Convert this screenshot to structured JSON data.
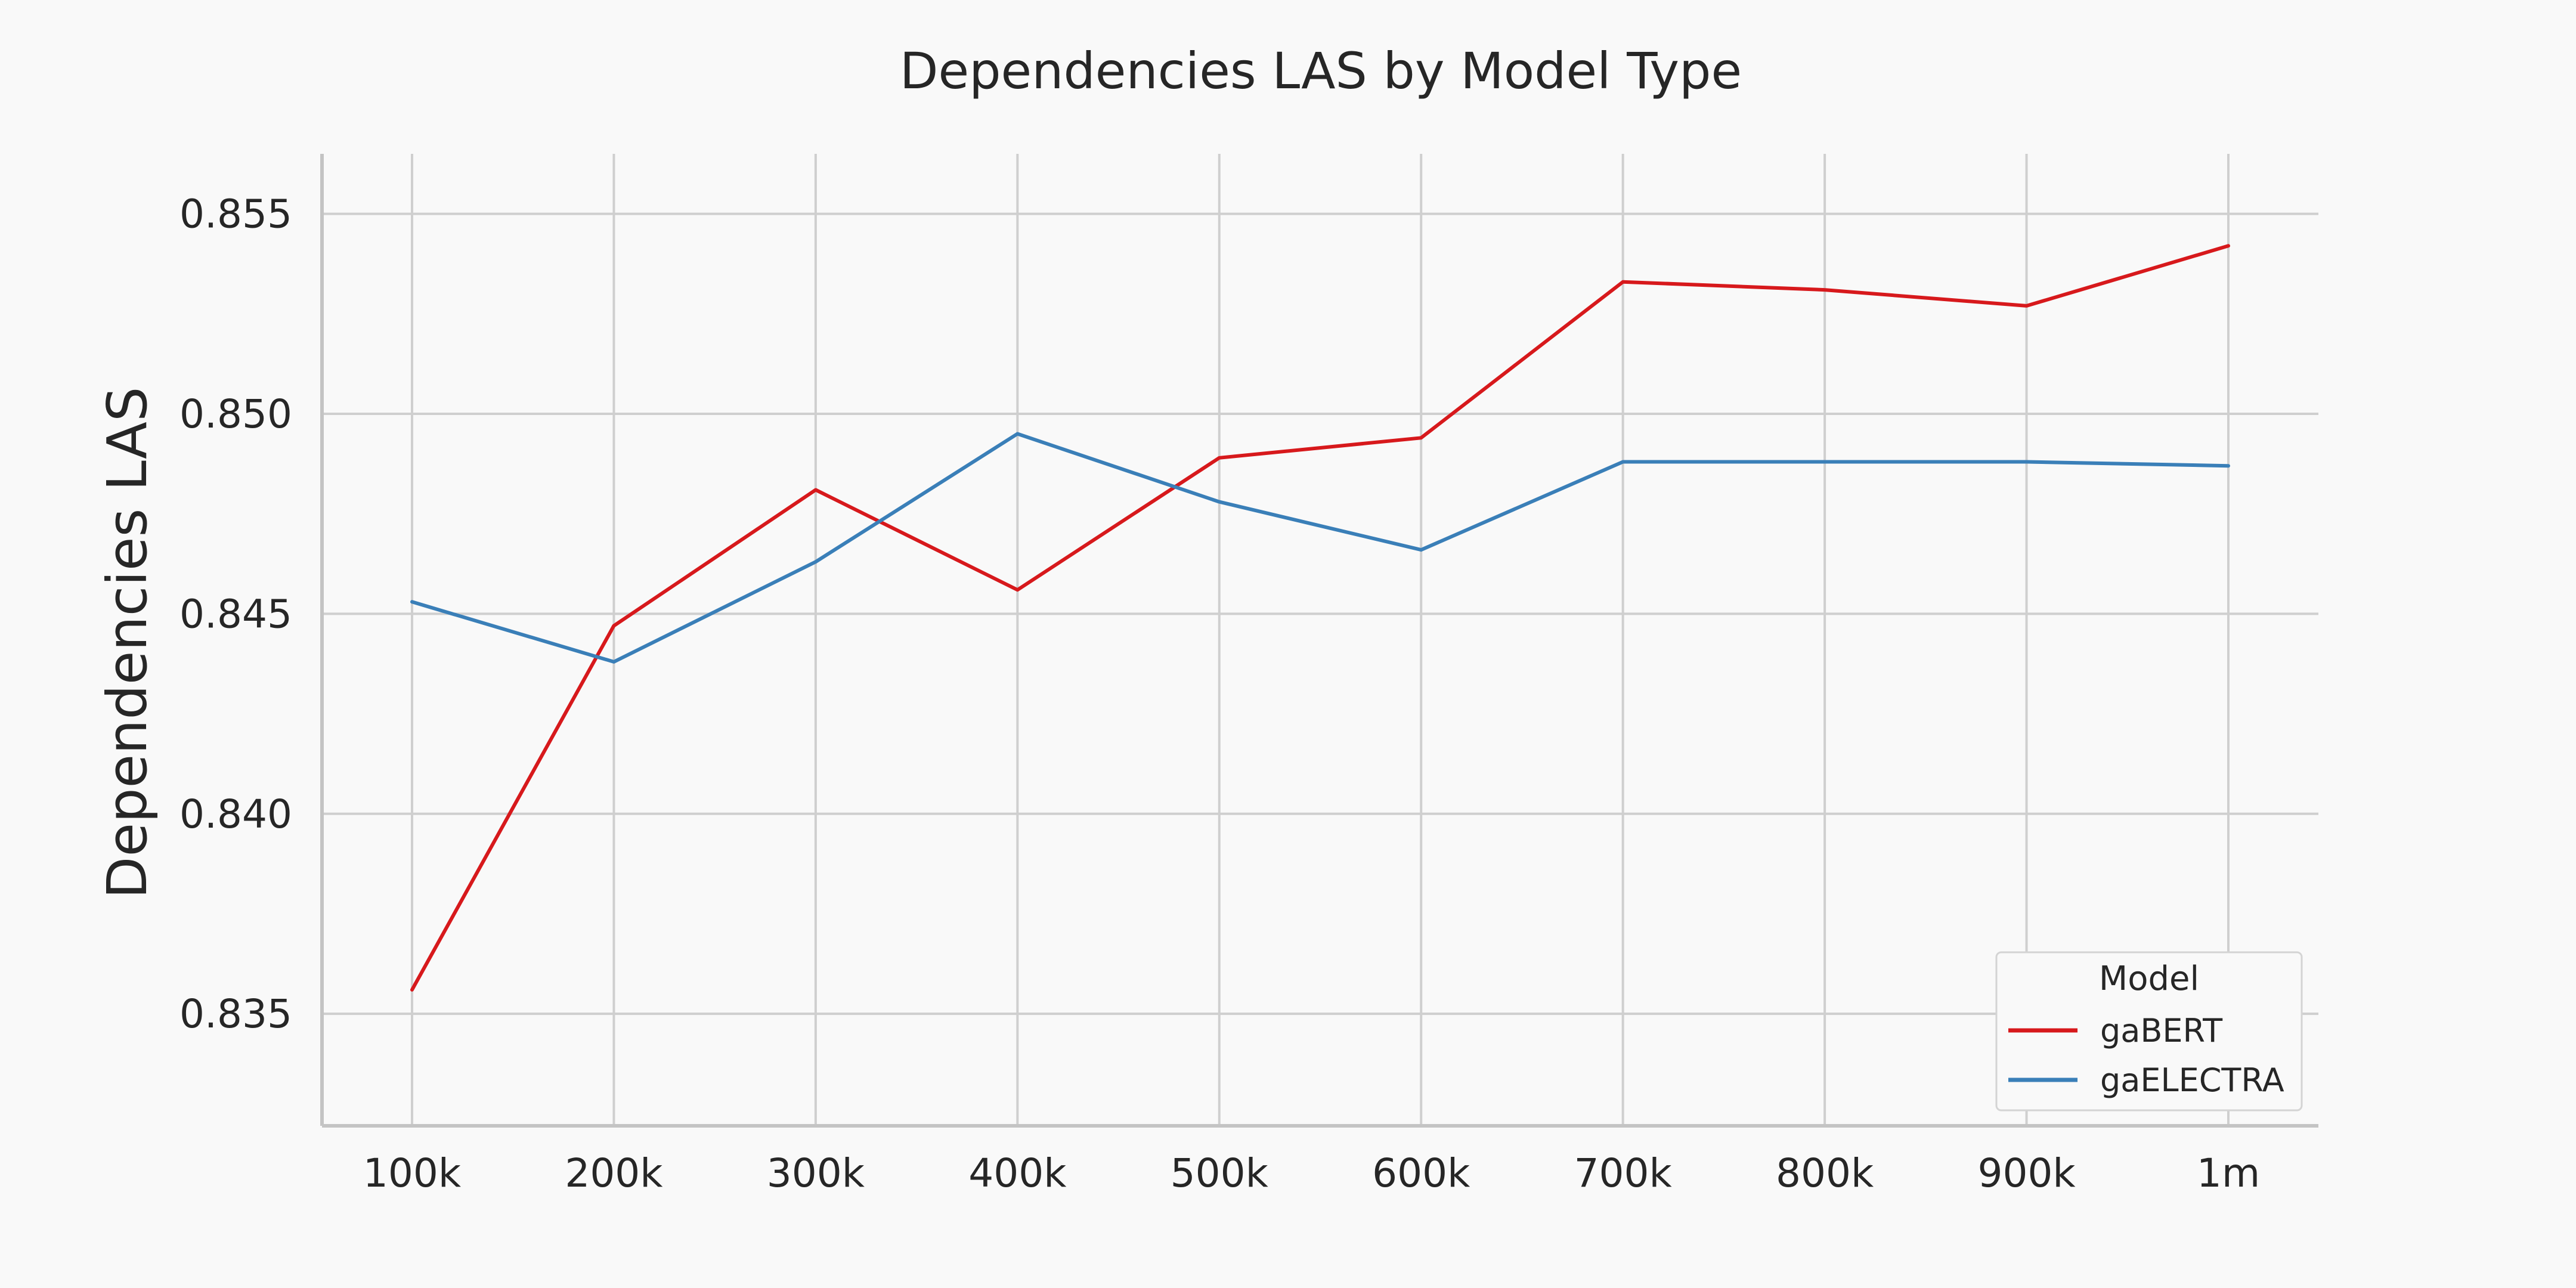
{
  "chart_data": {
    "type": "line",
    "title": "Dependencies LAS by Model Type",
    "xlabel": "",
    "ylabel": "Dependencies LAS",
    "categories": [
      "100k",
      "200k",
      "300k",
      "400k",
      "500k",
      "600k",
      "700k",
      "800k",
      "900k",
      "1m"
    ],
    "ylim": [
      0.8322,
      0.8565
    ],
    "yticks": [
      0.835,
      0.84,
      0.845,
      0.85,
      0.855
    ],
    "ytick_labels": [
      "0.835",
      "0.840",
      "0.845",
      "0.850",
      "0.855"
    ],
    "grid": true,
    "legend": {
      "title": "Model",
      "placement": "bottom-right"
    },
    "series": [
      {
        "name": "gaBERT",
        "color": "#d7191c",
        "values": [
          0.8356,
          0.8447,
          0.8481,
          0.8456,
          0.8489,
          0.8494,
          0.8533,
          0.8531,
          0.8527,
          0.8542
        ]
      },
      {
        "name": "gaELECTRA",
        "color": "#3a7fb8",
        "values": [
          0.8453,
          0.8438,
          0.8463,
          0.8495,
          0.8478,
          0.8466,
          0.8488,
          0.8488,
          0.8488,
          0.8487
        ]
      }
    ],
    "colors": {
      "grid": "#cfcfcf",
      "axis": "#c4c4c4",
      "text": "#262626",
      "background": "#f9f9f9"
    }
  }
}
